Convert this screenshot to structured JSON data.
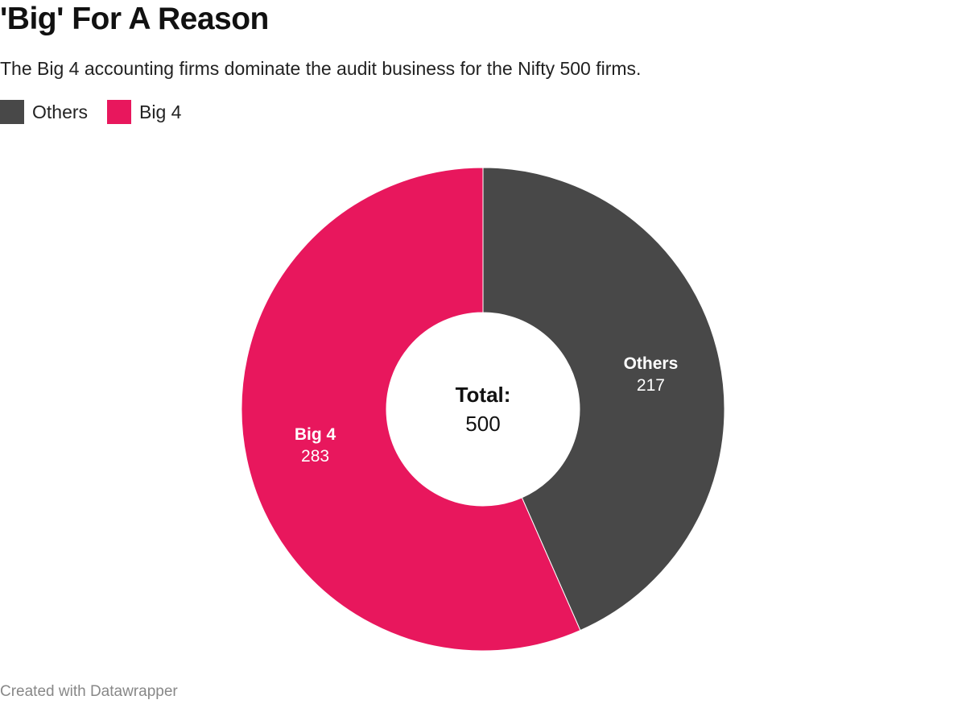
{
  "title": "'Big' For A Reason",
  "subtitle": "The Big 4 accounting firms dominate the audit business for the Nifty 500 firms.",
  "footer": "Created with Datawrapper",
  "chart_data": {
    "type": "pie",
    "variant": "donut",
    "slices": [
      {
        "label": "Others",
        "value": 217,
        "color": "#484848"
      },
      {
        "label": "Big 4",
        "value": 283,
        "color": "#e8175d"
      }
    ],
    "center_label": "Total:",
    "center_value": "500",
    "legend": [
      "Others",
      "Big 4"
    ],
    "legend_placement": "top-left"
  }
}
